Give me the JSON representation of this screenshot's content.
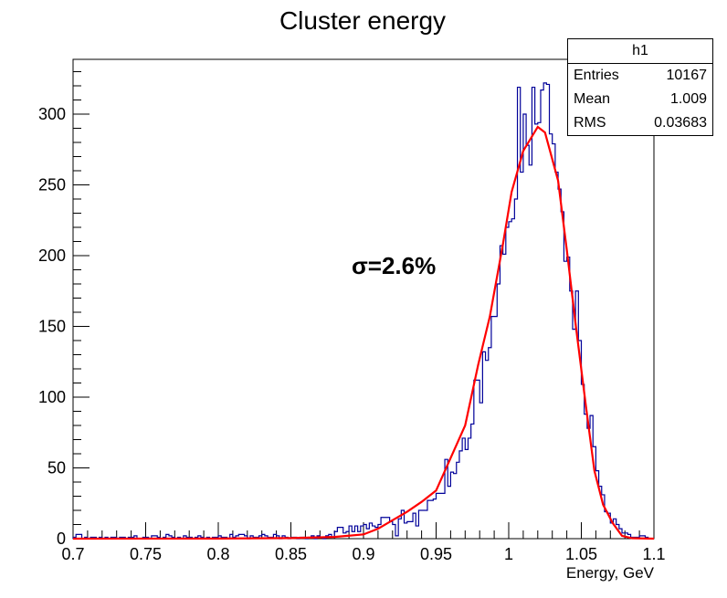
{
  "chart_data": {
    "type": "histogram",
    "title": "Cluster energy",
    "xlabel": "Energy, GeV",
    "ylabel": "",
    "xlim": [
      0.7,
      1.1
    ],
    "ylim": [
      0,
      338
    ],
    "grid": false,
    "bins": {
      "min": 0.7,
      "max": 1.1,
      "count": 200
    },
    "x_ticks": [
      "0.7",
      "0.75",
      "0.8",
      "0.85",
      "0.9",
      "0.95",
      "1",
      "1.05",
      "1.1"
    ],
    "y_ticks": [
      "0",
      "50",
      "100",
      "150",
      "200",
      "250",
      "300"
    ],
    "histogram_color": "#000099",
    "fit_color": "#ff0000",
    "counts": [
      1,
      3,
      3,
      0,
      1,
      0,
      1,
      1,
      0,
      1,
      0,
      1,
      0,
      1,
      1,
      0,
      1,
      1,
      0,
      1,
      1,
      2,
      0,
      0,
      1,
      1,
      0,
      2,
      2,
      1,
      0,
      1,
      3,
      2,
      1,
      0,
      1,
      0,
      2,
      1,
      1,
      0,
      1,
      2,
      1,
      0,
      1,
      0,
      1,
      1,
      2,
      1,
      1,
      0,
      3,
      1,
      2,
      3,
      3,
      2,
      0,
      2,
      1,
      1,
      2,
      3,
      2,
      1,
      1,
      3,
      2,
      0,
      2,
      1,
      0,
      1,
      1,
      0,
      1,
      1,
      0,
      1,
      2,
      0,
      2,
      1,
      0,
      2,
      3,
      1,
      5,
      8,
      8,
      4,
      5,
      9,
      5,
      9,
      5,
      9,
      10,
      7,
      11,
      9,
      8,
      10,
      15,
      15,
      15,
      12,
      10,
      2,
      14,
      20,
      11,
      12,
      12,
      18,
      9,
      20,
      20,
      20,
      27,
      27,
      28,
      32,
      32,
      32,
      56,
      37,
      47,
      46,
      54,
      62,
      71,
      63,
      71,
      81,
      112,
      112,
      96,
      132,
      126,
      135,
      157,
      157,
      180,
      207,
      201,
      220,
      224,
      226,
      240,
      319,
      259,
      300,
      278,
      264,
      319,
      293,
      294,
      317,
      322,
      321,
      286,
      279,
      259,
      247,
      231,
      196,
      199,
      175,
      148,
      175,
      140,
      109,
      88,
      78,
      87,
      65,
      48,
      37,
      31,
      19,
      18,
      11,
      14,
      10,
      7,
      4,
      4,
      3,
      1,
      1,
      1,
      2,
      2,
      1,
      0,
      0
    ],
    "fit": {
      "x": [
        0.7,
        0.8,
        0.85,
        0.88,
        0.9,
        0.91,
        0.92,
        0.93,
        0.94,
        0.95,
        0.96,
        0.97,
        0.979,
        0.987,
        0.996,
        1.002,
        1.01,
        1.02,
        1.025,
        1.034,
        1.04,
        1.0465,
        1.053,
        1.059,
        1.065,
        1.0716,
        1.078,
        1.085,
        1.1
      ],
      "y": [
        0,
        0.1,
        0.4,
        1.2,
        3,
        7,
        13,
        19,
        26,
        34,
        57,
        80,
        123,
        157,
        208,
        245,
        274,
        291,
        287,
        253,
        204,
        148,
        95,
        48,
        24,
        11,
        2,
        0.3,
        0
      ]
    },
    "annotation": "σ=2.6%",
    "stats": {
      "name": "h1",
      "rows": [
        {
          "label": "Entries",
          "value": "10167"
        },
        {
          "label": "Mean",
          "value": "1.009"
        },
        {
          "label": "RMS",
          "value": "0.03683"
        }
      ]
    }
  }
}
